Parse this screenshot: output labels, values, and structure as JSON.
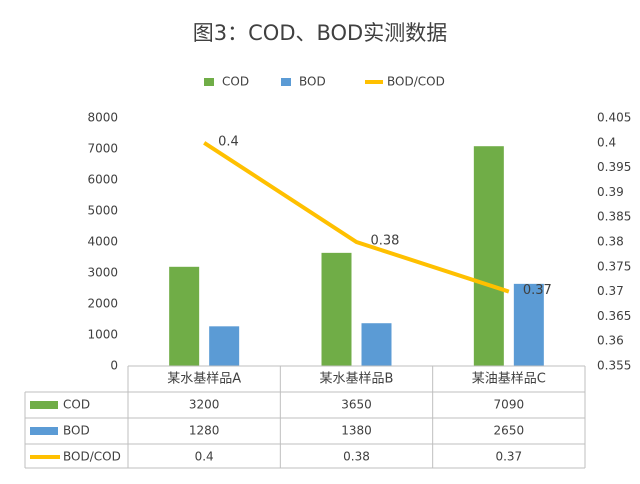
{
  "chart_data": {
    "type": "bar",
    "title": "图3：COD、BOD实测数据",
    "categories": [
      "某水基样品A",
      "某水基样品B",
      "某油基样品C"
    ],
    "series": [
      {
        "name": "COD",
        "color": "#70ad47",
        "values": [
          3200,
          3650,
          7090
        ]
      },
      {
        "name": "BOD",
        "color": "#5b9bd5",
        "values": [
          1280,
          1380,
          2650
        ]
      },
      {
        "name": "BOD/COD",
        "color": "#ffc000",
        "type": "line",
        "axis": "y2",
        "values": [
          0.4,
          0.38,
          0.37
        ]
      }
    ],
    "ylim": [
      0,
      8000
    ],
    "yticks": [
      0,
      1000,
      2000,
      3000,
      4000,
      5000,
      6000,
      7000,
      8000
    ],
    "y2lim": [
      0.355,
      0.405
    ],
    "y2ticks": [
      0.355,
      0.36,
      0.365,
      0.37,
      0.375,
      0.38,
      0.385,
      0.39,
      0.395,
      0.4,
      0.405
    ],
    "grid": false,
    "legend": "top",
    "data_table": true
  }
}
